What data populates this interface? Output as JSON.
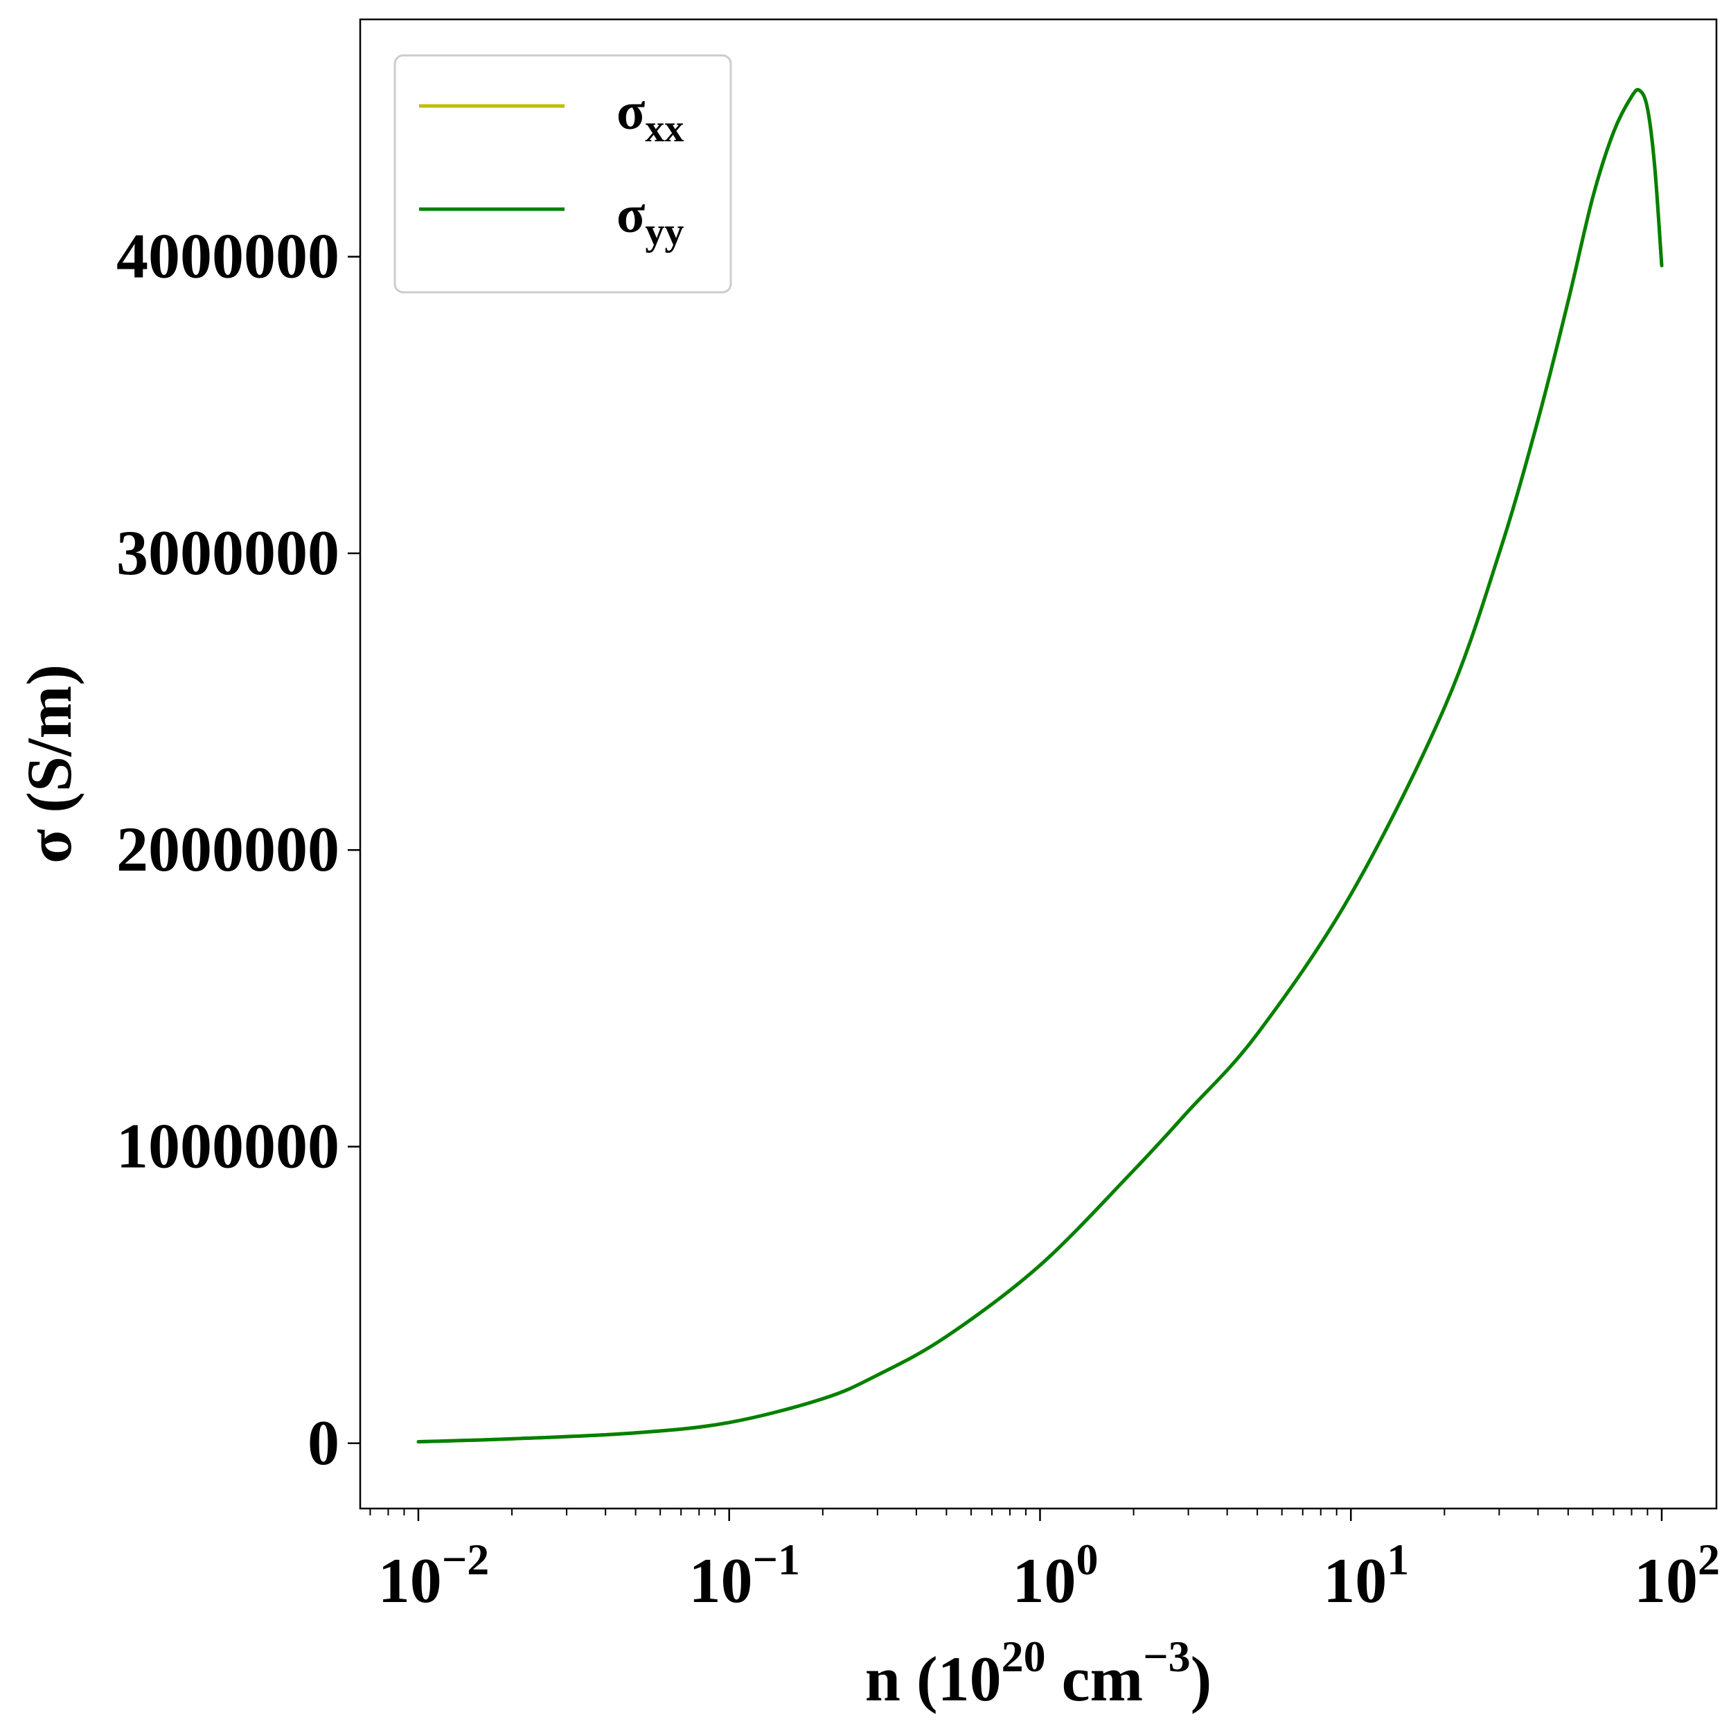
{
  "chart_data": {
    "type": "line",
    "title": "",
    "xlabel": {
      "base": "n (10",
      "sup1": "20",
      "mid": " cm",
      "sup2": "−3",
      "end": ")"
    },
    "ylabel": "σ (S/m)",
    "xscale": "log",
    "xlim": [
      0.0065,
      150
    ],
    "ylim": [
      -220000,
      4800000
    ],
    "grid": false,
    "legend_position": "top-left",
    "xticks": [
      {
        "value": 0.01,
        "base": "10",
        "exp": "−2"
      },
      {
        "value": 0.1,
        "base": "10",
        "exp": "−1"
      },
      {
        "value": 1,
        "base": "10",
        "exp": "0"
      },
      {
        "value": 10,
        "base": "10",
        "exp": "1"
      },
      {
        "value": 100,
        "base": "10",
        "exp": "2"
      }
    ],
    "yticks": [
      {
        "value": 0,
        "label": "0"
      },
      {
        "value": 1000000,
        "label": "1000000"
      },
      {
        "value": 2000000,
        "label": "2000000"
      },
      {
        "value": 3000000,
        "label": "3000000"
      },
      {
        "value": 4000000,
        "label": "4000000"
      }
    ],
    "series": [
      {
        "name": "σxx",
        "label_base": "σ",
        "label_sub": "xx",
        "color": "#bfbf00",
        "x": [
          0.01,
          0.02,
          0.05,
          0.1,
          0.2,
          0.3,
          0.5,
          1,
          2,
          3,
          5,
          10,
          20,
          30,
          40,
          50,
          60,
          70,
          80,
          85,
          90,
          95,
          100
        ],
        "y": [
          5000,
          15000,
          35000,
          70000,
          150000,
          230000,
          360000,
          600000,
          920000,
          1120000,
          1380000,
          1850000,
          2480000,
          3000000,
          3450000,
          3850000,
          4200000,
          4420000,
          4540000,
          4560000,
          4500000,
          4300000,
          3970000
        ]
      },
      {
        "name": "σyy",
        "label_base": "σ",
        "label_sub": "yy",
        "color": "#008000",
        "x": [
          0.01,
          0.02,
          0.05,
          0.1,
          0.2,
          0.3,
          0.5,
          1,
          2,
          3,
          5,
          10,
          20,
          30,
          40,
          50,
          60,
          70,
          80,
          85,
          90,
          95,
          100
        ],
        "y": [
          5000,
          15000,
          35000,
          70000,
          150000,
          230000,
          360000,
          600000,
          920000,
          1120000,
          1380000,
          1850000,
          2480000,
          3000000,
          3450000,
          3850000,
          4200000,
          4420000,
          4540000,
          4560000,
          4500000,
          4300000,
          3970000
        ]
      }
    ]
  }
}
